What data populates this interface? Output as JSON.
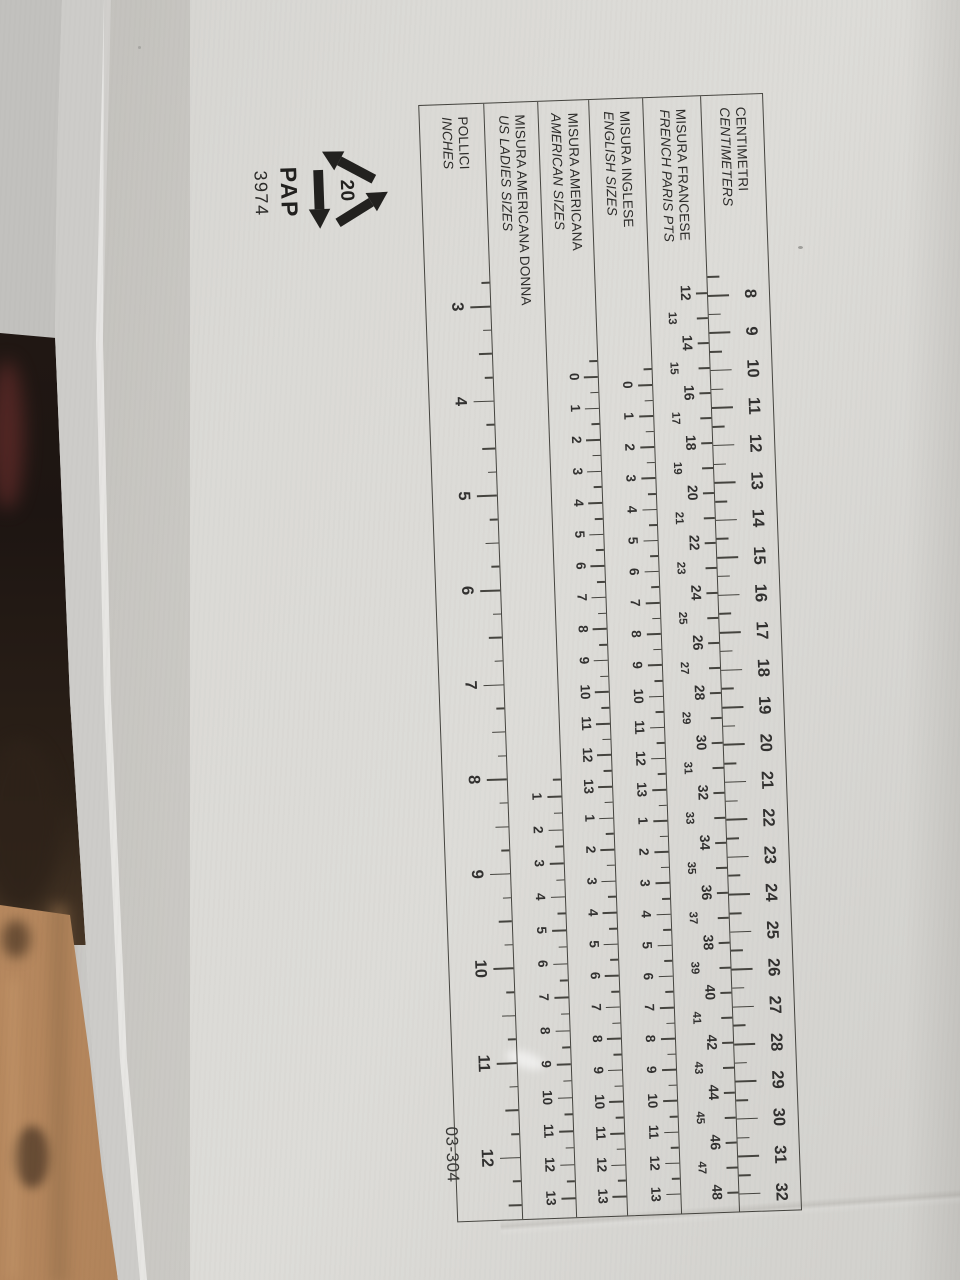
{
  "photo": {
    "subject": "shoebox lid with printed shoe size conversion ruler",
    "colors": {
      "box_paper": "#d8d7d3",
      "print": "#45443f",
      "wood_floor": "#ab7f57",
      "dark_background": "#211813"
    }
  },
  "ruler": {
    "scales": {
      "centimeters": {
        "label_it": "CENTIMETRI",
        "label_en": "CENTIMETERS",
        "numbers": [
          8,
          9,
          10,
          11,
          12,
          13,
          14,
          15,
          16,
          17,
          18,
          19,
          20,
          21,
          22,
          23,
          24,
          25,
          26,
          27,
          28,
          29,
          30,
          31,
          32
        ]
      },
      "french": {
        "label_it": "MISURA FRANCESE",
        "label_en": "FRENCH PARIS PTS",
        "numbers": [
          12,
          13,
          14,
          15,
          16,
          17,
          18,
          19,
          20,
          21,
          22,
          23,
          24,
          25,
          26,
          27,
          28,
          29,
          30,
          31,
          32,
          33,
          34,
          35,
          36,
          37,
          38,
          39,
          40,
          41,
          42,
          43,
          44,
          45,
          46,
          47,
          48
        ]
      },
      "english": {
        "label_it": "MISURA INGLESE",
        "label_en": "ENGLISH SIZES",
        "numbers": [
          0,
          1,
          2,
          3,
          4,
          5,
          6,
          7,
          8,
          9,
          10,
          11,
          12,
          13,
          1,
          2,
          3,
          4,
          5,
          6,
          7,
          8,
          9,
          10,
          11,
          12,
          13
        ]
      },
      "american": {
        "label_it": "MISURA AMERICANA",
        "label_en": "AMERICAN SIZES",
        "numbers": [
          0,
          1,
          2,
          3,
          4,
          5,
          6,
          7,
          8,
          9,
          10,
          11,
          12,
          13,
          1,
          2,
          3,
          4,
          5,
          6,
          7,
          8,
          9,
          10,
          11,
          12,
          13
        ]
      },
      "us_ladies": {
        "label_it": "MISURA AMERICANA DONNA",
        "label_en": "US LADIES SIZES",
        "numbers": [
          1,
          2,
          3,
          4,
          5,
          6,
          7,
          8,
          9,
          10,
          11,
          12,
          13
        ]
      },
      "inches": {
        "label_it": "POLLICI",
        "label_en": "INCHES",
        "numbers": [
          3,
          4,
          5,
          6,
          7,
          8,
          9,
          10,
          11,
          12
        ]
      }
    }
  },
  "markings": {
    "recycling_number": "20",
    "recycling_material": "PAP",
    "recycling_code": "3974",
    "product_code": "03-304"
  }
}
